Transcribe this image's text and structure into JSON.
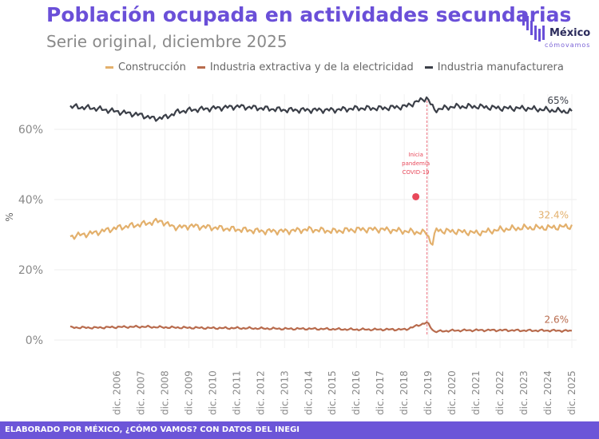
{
  "header": {
    "title": "Población ocupada en actividades secundarias",
    "subtitle": "Serie original, diciembre 2025"
  },
  "logo": {
    "word": "México",
    "sub": "cómovamos"
  },
  "footer": {
    "text": "ELABORADO POR MÉXICO, ¿CÓMO VAMOS? CON DATOS DEL INEGI"
  },
  "colors": {
    "accent": "#6a4fd8",
    "construccion": "#e3b06c",
    "extractiva": "#b86b4d",
    "manufacturera": "#3b3f48",
    "pandemia": "#e8485a"
  },
  "chart_data": {
    "type": "line",
    "title": "Población ocupada en actividades secundarias",
    "subtitle": "Serie original, diciembre 2025",
    "ylabel": "%",
    "ylim": [
      0,
      70
    ],
    "yticks": [
      0,
      20,
      40,
      60
    ],
    "ytick_labels": [
      "0%",
      "20%",
      "40%",
      "60%"
    ],
    "xlim": [
      2005.0,
      2025.95
    ],
    "xticks": [
      2006.95,
      2007.95,
      2008.95,
      2009.95,
      2010.95,
      2011.95,
      2012.95,
      2013.95,
      2014.95,
      2015.95,
      2016.95,
      2017.95,
      2018.95,
      2019.95,
      2020.95,
      2021.95,
      2022.95,
      2023.95,
      2024.95,
      2025.95
    ],
    "xtick_labels": [
      "dic. 2006",
      "dic. 2007",
      "dic. 2008",
      "dic. 2009",
      "dic. 2010",
      "dic. 2011",
      "dic. 2012",
      "dic. 2013",
      "dic. 2014",
      "dic. 2015",
      "dic. 2016",
      "dic. 2017",
      "dic. 2018",
      "dic. 2019",
      "dic. 2020",
      "dic. 2021",
      "dic. 2022",
      "dic. 2023",
      "dic. 2024",
      "dic. 2025"
    ],
    "grid": true,
    "legend_position": "top",
    "series": [
      {
        "name": "Construcción",
        "color": "#e3b06c",
        "x": [
          2005.0,
          2006.0,
          2007.0,
          2008.0,
          2008.8,
          2009.0,
          2009.5,
          2010.0,
          2011.0,
          2012.0,
          2013.0,
          2014.0,
          2015.0,
          2016.0,
          2017.0,
          2018.0,
          2019.0,
          2019.9,
          2020.1,
          2020.3,
          2020.6,
          2021.0,
          2022.0,
          2023.0,
          2024.0,
          2025.0,
          2025.95
        ],
        "y": [
          29.5,
          30.5,
          32.0,
          33.0,
          34.0,
          33.0,
          32.0,
          32.5,
          32.0,
          31.5,
          31.0,
          31.0,
          31.5,
          31.0,
          31.5,
          31.5,
          31.0,
          30.5,
          27.0,
          31.5,
          31.0,
          31.0,
          30.5,
          31.5,
          32.0,
          32.0,
          32.4
        ],
        "end_label": "32.4%"
      },
      {
        "name": "Industria extractiva y de la electricidad",
        "color": "#b86b4d",
        "x": [
          2005.0,
          2006.0,
          2007.0,
          2008.0,
          2009.0,
          2010.0,
          2011.0,
          2012.0,
          2013.0,
          2014.0,
          2015.0,
          2016.0,
          2017.0,
          2018.0,
          2019.0,
          2019.9,
          2020.2,
          2021.0,
          2022.0,
          2023.0,
          2024.0,
          2025.0,
          2025.95
        ],
        "y": [
          3.6,
          3.5,
          3.7,
          3.8,
          3.6,
          3.5,
          3.4,
          3.4,
          3.3,
          3.2,
          3.2,
          3.1,
          3.0,
          3.0,
          3.0,
          5.0,
          2.4,
          2.7,
          2.8,
          2.8,
          2.7,
          2.7,
          2.6
        ],
        "end_label": "2.6%"
      },
      {
        "name": "Industria manufacturera",
        "color": "#3b3f48",
        "x": [
          2005.0,
          2006.0,
          2007.0,
          2008.0,
          2008.5,
          2009.0,
          2009.5,
          2010.0,
          2011.0,
          2012.0,
          2013.0,
          2014.0,
          2015.0,
          2016.0,
          2017.0,
          2018.0,
          2019.0,
          2019.9,
          2020.2,
          2021.0,
          2022.0,
          2023.0,
          2024.0,
          2025.0,
          2025.95
        ],
        "y": [
          66.5,
          66.0,
          65.0,
          64.0,
          63.0,
          63.5,
          65.0,
          65.5,
          66.0,
          66.5,
          66.0,
          65.5,
          65.5,
          65.5,
          66.0,
          66.0,
          66.5,
          69.0,
          65.5,
          66.5,
          66.5,
          66.0,
          66.0,
          65.5,
          65.0
        ],
        "end_label": "65%"
      }
    ],
    "annotations": [
      {
        "type": "vline",
        "x": 2019.9,
        "label": "Inicia pandemia COVID-19",
        "color": "#e8485a"
      }
    ]
  }
}
